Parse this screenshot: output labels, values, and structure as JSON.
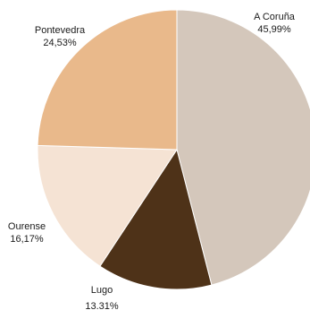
{
  "chart_data": {
    "type": "pie",
    "title": "",
    "slices": [
      {
        "name": "A Coruña",
        "value": 45.99,
        "label": "45,99%",
        "color": "#d4c7bb"
      },
      {
        "name": "Lugo",
        "value": 13.31,
        "label": "13.31%",
        "color": "#4e3218"
      },
      {
        "name": "Ourense",
        "value": 16.17,
        "label": "16,17%",
        "color": "#f5e3d4"
      },
      {
        "name": "Pontevedra",
        "value": 24.53,
        "label": "24,53%",
        "color": "#e9b98b"
      }
    ],
    "start_angle_deg": 0,
    "direction": "clockwise"
  }
}
